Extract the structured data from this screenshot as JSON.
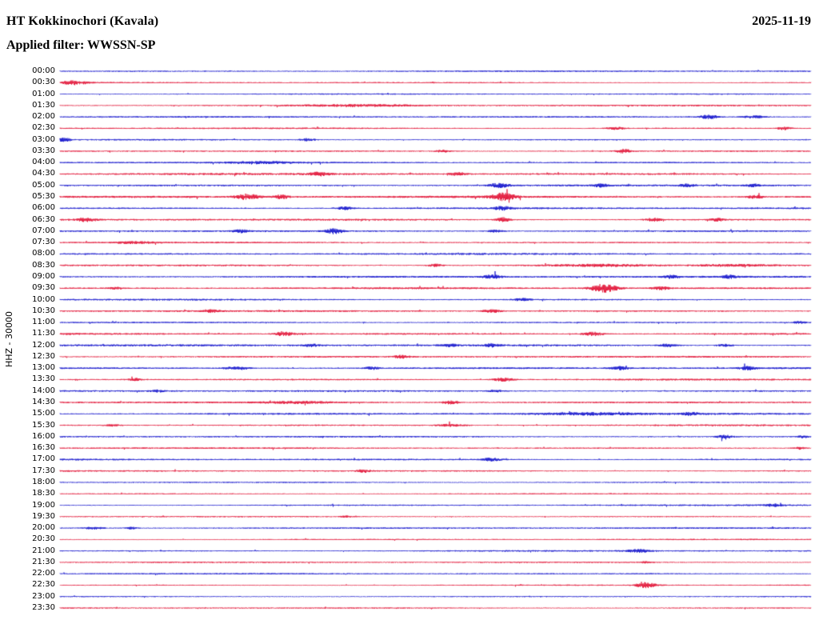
{
  "header": {
    "title": "HT Kokkinochori (Kavala)",
    "date": "2025-11-19",
    "filter_label": "Applied filter: WWSSN-SP"
  },
  "axis": {
    "left_label": "HHZ - 30000"
  },
  "palette": {
    "blue": "#0000c8",
    "red": "#e00028"
  },
  "chart_data": {
    "type": "line",
    "kind": "helicorder-seismogram",
    "station": "HT Kokkinochori (Kavala)",
    "channel": "HHZ",
    "scale": "30000",
    "date": "2025-11-19",
    "filter": "WWSSN-SP",
    "minutes_per_row": 30,
    "x_range_minutes": [
      0,
      30
    ],
    "grid": false,
    "legend": "none",
    "rows": [
      {
        "label": "00:00",
        "color": "blue",
        "base": 0.65,
        "bursts": []
      },
      {
        "label": "00:30",
        "color": "red",
        "base": 0.6,
        "bursts": [
          {
            "x": 0.012,
            "a": 2.0,
            "w": 10
          },
          {
            "x": 0.03,
            "a": 1.2,
            "w": 12
          }
        ]
      },
      {
        "label": "01:00",
        "color": "blue",
        "base": 0.6,
        "bursts": []
      },
      {
        "label": "01:30",
        "color": "red",
        "base": 0.7,
        "bursts": [
          {
            "x": 0.4,
            "a": 1.0,
            "w": 70
          }
        ]
      },
      {
        "label": "02:00",
        "color": "blue",
        "base": 0.7,
        "bursts": [
          {
            "x": 0.865,
            "a": 2.4,
            "w": 12
          },
          {
            "x": 0.925,
            "a": 1.6,
            "w": 14
          }
        ]
      },
      {
        "label": "02:30",
        "color": "red",
        "base": 0.7,
        "bursts": [
          {
            "x": 0.74,
            "a": 1.8,
            "w": 10
          },
          {
            "x": 0.965,
            "a": 1.8,
            "w": 8
          }
        ]
      },
      {
        "label": "03:00",
        "color": "blue",
        "base": 0.7,
        "bursts": [
          {
            "x": 0.006,
            "a": 2.2,
            "w": 8
          },
          {
            "x": 0.33,
            "a": 1.6,
            "w": 9
          }
        ]
      },
      {
        "label": "03:30",
        "color": "red",
        "base": 0.7,
        "bursts": [
          {
            "x": 0.51,
            "a": 1.4,
            "w": 9
          },
          {
            "x": 0.75,
            "a": 2.4,
            "w": 10
          }
        ]
      },
      {
        "label": "04:00",
        "color": "blue",
        "base": 0.8,
        "bursts": [
          {
            "x": 0.27,
            "a": 1.0,
            "w": 40
          }
        ]
      },
      {
        "label": "04:30",
        "color": "red",
        "base": 0.9,
        "bursts": [
          {
            "x": 0.345,
            "a": 2.0,
            "w": 12
          },
          {
            "x": 0.53,
            "a": 1.8,
            "w": 10
          }
        ]
      },
      {
        "label": "05:00",
        "color": "blue",
        "base": 0.9,
        "bursts": [
          {
            "x": 0.585,
            "a": 2.8,
            "w": 12
          },
          {
            "x": 0.72,
            "a": 1.6,
            "w": 9
          },
          {
            "x": 0.835,
            "a": 1.5,
            "w": 9
          },
          {
            "x": 0.925,
            "a": 1.5,
            "w": 9
          }
        ]
      },
      {
        "label": "05:30",
        "color": "red",
        "base": 1.0,
        "bursts": [
          {
            "x": 0.25,
            "a": 3.2,
            "w": 14
          },
          {
            "x": 0.295,
            "a": 2.2,
            "w": 9
          },
          {
            "x": 0.59,
            "a": 4.2,
            "w": 14
          },
          {
            "x": 0.925,
            "a": 1.8,
            "w": 10
          }
        ]
      },
      {
        "label": "06:00",
        "color": "blue",
        "base": 0.85,
        "bursts": [
          {
            "x": 0.38,
            "a": 1.8,
            "w": 10
          },
          {
            "x": 0.59,
            "a": 2.2,
            "w": 10
          }
        ]
      },
      {
        "label": "06:30",
        "color": "red",
        "base": 0.85,
        "bursts": [
          {
            "x": 0.035,
            "a": 2.2,
            "w": 12
          },
          {
            "x": 0.59,
            "a": 2.6,
            "w": 8
          },
          {
            "x": 0.79,
            "a": 1.8,
            "w": 10
          },
          {
            "x": 0.875,
            "a": 1.8,
            "w": 8
          }
        ]
      },
      {
        "label": "07:00",
        "color": "blue",
        "base": 0.85,
        "bursts": [
          {
            "x": 0.24,
            "a": 1.6,
            "w": 10
          },
          {
            "x": 0.365,
            "a": 3.2,
            "w": 10
          },
          {
            "x": 0.58,
            "a": 1.4,
            "w": 9
          }
        ]
      },
      {
        "label": "07:30",
        "color": "red",
        "base": 0.75,
        "bursts": [
          {
            "x": 0.1,
            "a": 1.0,
            "w": 25
          }
        ]
      },
      {
        "label": "08:00",
        "color": "blue",
        "base": 0.8,
        "bursts": []
      },
      {
        "label": "08:30",
        "color": "red",
        "base": 0.85,
        "bursts": [
          {
            "x": 0.5,
            "a": 1.6,
            "w": 9
          },
          {
            "x": 0.72,
            "a": 1.1,
            "w": 60
          },
          {
            "x": 0.9,
            "a": 1.1,
            "w": 50
          }
        ]
      },
      {
        "label": "09:00",
        "color": "blue",
        "base": 0.9,
        "bursts": [
          {
            "x": 0.575,
            "a": 2.0,
            "w": 11
          },
          {
            "x": 0.815,
            "a": 1.6,
            "w": 9
          },
          {
            "x": 0.89,
            "a": 1.6,
            "w": 9
          }
        ]
      },
      {
        "label": "09:30",
        "color": "red",
        "base": 0.85,
        "bursts": [
          {
            "x": 0.725,
            "a": 4.8,
            "w": 16
          },
          {
            "x": 0.8,
            "a": 1.8,
            "w": 10
          },
          {
            "x": 0.075,
            "a": 1.1,
            "w": 9
          }
        ]
      },
      {
        "label": "10:00",
        "color": "blue",
        "base": 0.8,
        "bursts": [
          {
            "x": 0.615,
            "a": 1.4,
            "w": 10
          }
        ]
      },
      {
        "label": "10:30",
        "color": "red",
        "base": 0.8,
        "bursts": [
          {
            "x": 0.2,
            "a": 1.8,
            "w": 9
          },
          {
            "x": 0.575,
            "a": 1.8,
            "w": 11
          }
        ]
      },
      {
        "label": "11:00",
        "color": "blue",
        "base": 0.7,
        "bursts": [
          {
            "x": 0.985,
            "a": 1.2,
            "w": 9
          }
        ]
      },
      {
        "label": "11:30",
        "color": "red",
        "base": 0.9,
        "bursts": [
          {
            "x": 0.3,
            "a": 2.0,
            "w": 12
          },
          {
            "x": 0.71,
            "a": 2.2,
            "w": 12
          }
        ]
      },
      {
        "label": "12:00",
        "color": "blue",
        "base": 0.9,
        "bursts": [
          {
            "x": 0.335,
            "a": 1.5,
            "w": 9
          },
          {
            "x": 0.52,
            "a": 1.5,
            "w": 9
          },
          {
            "x": 0.575,
            "a": 1.7,
            "w": 9
          },
          {
            "x": 0.81,
            "a": 1.7,
            "w": 10
          },
          {
            "x": 0.885,
            "a": 1.5,
            "w": 9
          }
        ]
      },
      {
        "label": "12:30",
        "color": "red",
        "base": 0.8,
        "bursts": [
          {
            "x": 0.455,
            "a": 2.0,
            "w": 9
          }
        ]
      },
      {
        "label": "13:00",
        "color": "blue",
        "base": 0.9,
        "bursts": [
          {
            "x": 0.235,
            "a": 2.0,
            "w": 14
          },
          {
            "x": 0.415,
            "a": 1.6,
            "w": 9
          },
          {
            "x": 0.745,
            "a": 1.7,
            "w": 10
          },
          {
            "x": 0.915,
            "a": 1.9,
            "w": 9
          }
        ]
      },
      {
        "label": "13:30",
        "color": "red",
        "base": 0.85,
        "bursts": [
          {
            "x": 0.59,
            "a": 2.3,
            "w": 12
          },
          {
            "x": 0.1,
            "a": 1.1,
            "w": 9
          }
        ]
      },
      {
        "label": "14:00",
        "color": "blue",
        "base": 0.8,
        "bursts": [
          {
            "x": 0.13,
            "a": 1.1,
            "w": 9
          },
          {
            "x": 0.58,
            "a": 1.1,
            "w": 9
          }
        ]
      },
      {
        "label": "14:30",
        "color": "red",
        "base": 0.9,
        "bursts": [
          {
            "x": 0.52,
            "a": 1.8,
            "w": 11
          },
          {
            "x": 0.32,
            "a": 1.2,
            "w": 40
          }
        ]
      },
      {
        "label": "15:00",
        "color": "blue",
        "base": 0.9,
        "bursts": [
          {
            "x": 0.7,
            "a": 1.1,
            "w": 60
          },
          {
            "x": 0.84,
            "a": 1.4,
            "w": 10
          }
        ]
      },
      {
        "label": "15:30",
        "color": "red",
        "base": 0.8,
        "bursts": [
          {
            "x": 0.07,
            "a": 1.1,
            "w": 9
          },
          {
            "x": 0.52,
            "a": 1.2,
            "w": 18
          }
        ]
      },
      {
        "label": "16:00",
        "color": "blue",
        "base": 0.7,
        "bursts": [
          {
            "x": 0.885,
            "a": 2.0,
            "w": 9
          },
          {
            "x": 0.99,
            "a": 1.4,
            "w": 7
          }
        ]
      },
      {
        "label": "16:30",
        "color": "red",
        "base": 0.7,
        "bursts": [
          {
            "x": 0.985,
            "a": 1.6,
            "w": 7
          }
        ]
      },
      {
        "label": "17:00",
        "color": "blue",
        "base": 0.8,
        "bursts": [
          {
            "x": 0.575,
            "a": 1.8,
            "w": 12
          }
        ]
      },
      {
        "label": "17:30",
        "color": "red",
        "base": 0.7,
        "bursts": [
          {
            "x": 0.405,
            "a": 1.7,
            "w": 9
          }
        ]
      },
      {
        "label": "18:00",
        "color": "blue",
        "base": 0.6,
        "bursts": []
      },
      {
        "label": "18:30",
        "color": "red",
        "base": 0.6,
        "bursts": []
      },
      {
        "label": "19:00",
        "color": "blue",
        "base": 0.7,
        "bursts": [
          {
            "x": 0.95,
            "a": 1.3,
            "w": 10
          }
        ]
      },
      {
        "label": "19:30",
        "color": "red",
        "base": 0.6,
        "bursts": [
          {
            "x": 0.38,
            "a": 0.9,
            "w": 7
          }
        ]
      },
      {
        "label": "20:00",
        "color": "blue",
        "base": 0.7,
        "bursts": [
          {
            "x": 0.045,
            "a": 1.4,
            "w": 12
          },
          {
            "x": 0.095,
            "a": 1.2,
            "w": 8
          }
        ]
      },
      {
        "label": "20:30",
        "color": "red",
        "base": 0.6,
        "bursts": []
      },
      {
        "label": "21:00",
        "color": "blue",
        "base": 0.7,
        "bursts": [
          {
            "x": 0.77,
            "a": 1.8,
            "w": 14
          }
        ]
      },
      {
        "label": "21:30",
        "color": "red",
        "base": 0.6,
        "bursts": [
          {
            "x": 0.78,
            "a": 0.9,
            "w": 7
          }
        ]
      },
      {
        "label": "22:00",
        "color": "blue",
        "base": 0.65,
        "bursts": []
      },
      {
        "label": "22:30",
        "color": "red",
        "base": 0.6,
        "bursts": [
          {
            "x": 0.78,
            "a": 3.2,
            "w": 12
          }
        ]
      },
      {
        "label": "23:00",
        "color": "blue",
        "base": 0.6,
        "bursts": []
      },
      {
        "label": "23:30",
        "color": "red",
        "base": 0.6,
        "bursts": []
      }
    ]
  }
}
